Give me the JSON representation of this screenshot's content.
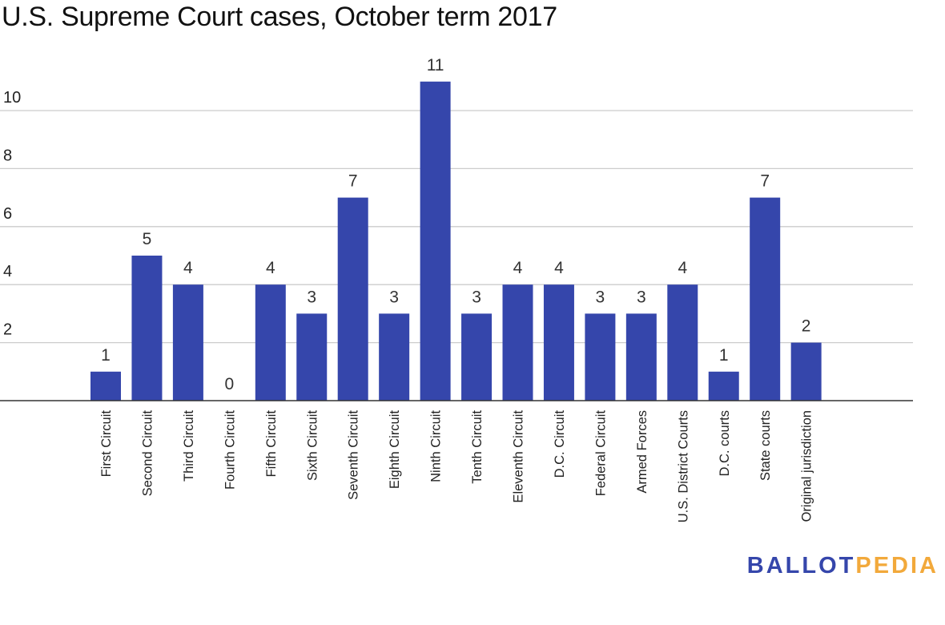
{
  "colors": {
    "bar": "#3546ab",
    "gridline": "#cccccc",
    "axis": "#333333",
    "logo_primary": "#3546ab",
    "logo_accent": "#f2a93b"
  },
  "logo": {
    "part1": "BALLOT",
    "part2": "PEDIA"
  },
  "chart_data": {
    "type": "bar",
    "title": "U.S. Supreme Court cases, October term 2017",
    "xlabel": "",
    "ylabel": "",
    "ylim": [
      0,
      11
    ],
    "yticks": [
      2,
      4,
      6,
      8,
      10
    ],
    "grid": true,
    "legend": "none",
    "categories": [
      "First Circuit",
      "Second Circuit",
      "Third Circuit",
      "Fourth Circuit",
      "Fifth Circuit",
      "Sixth Circuit",
      "Seventh Circuit",
      "Eighth Circuit",
      "Ninth Circuit",
      "Tenth Circuit",
      "Eleventh Circuit",
      "D.C. Circuit",
      "Federal Circuit",
      "Armed Forces",
      "U.S. District Courts",
      "D.C. courts",
      "State courts",
      "Original jurisdiction"
    ],
    "values": [
      1,
      5,
      4,
      0,
      4,
      3,
      7,
      3,
      11,
      3,
      4,
      4,
      3,
      3,
      4,
      1,
      7,
      2
    ]
  }
}
